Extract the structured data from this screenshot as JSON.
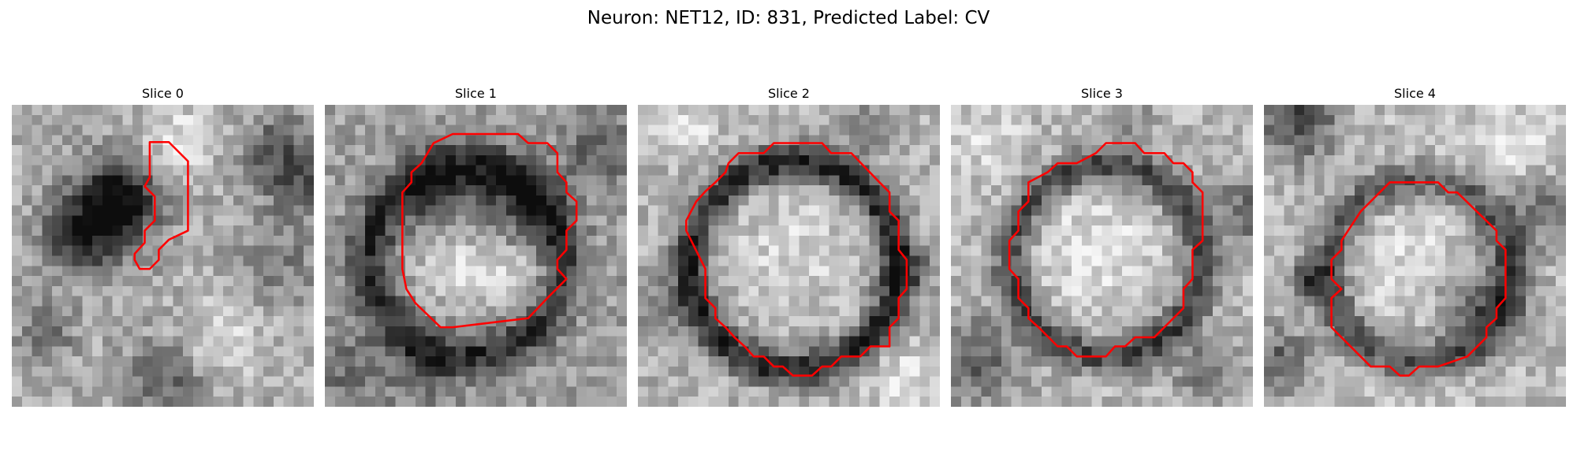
{
  "figure": {
    "title": "Neuron: NET12, ID: 831, Predicted Label: CV",
    "contour_color": "#ff0000",
    "image_colormap": "gray",
    "panels": [
      {
        "title": "Slice 0"
      },
      {
        "title": "Slice 1"
      },
      {
        "title": "Slice 2"
      },
      {
        "title": "Slice 3"
      },
      {
        "title": "Slice 4"
      }
    ]
  }
}
